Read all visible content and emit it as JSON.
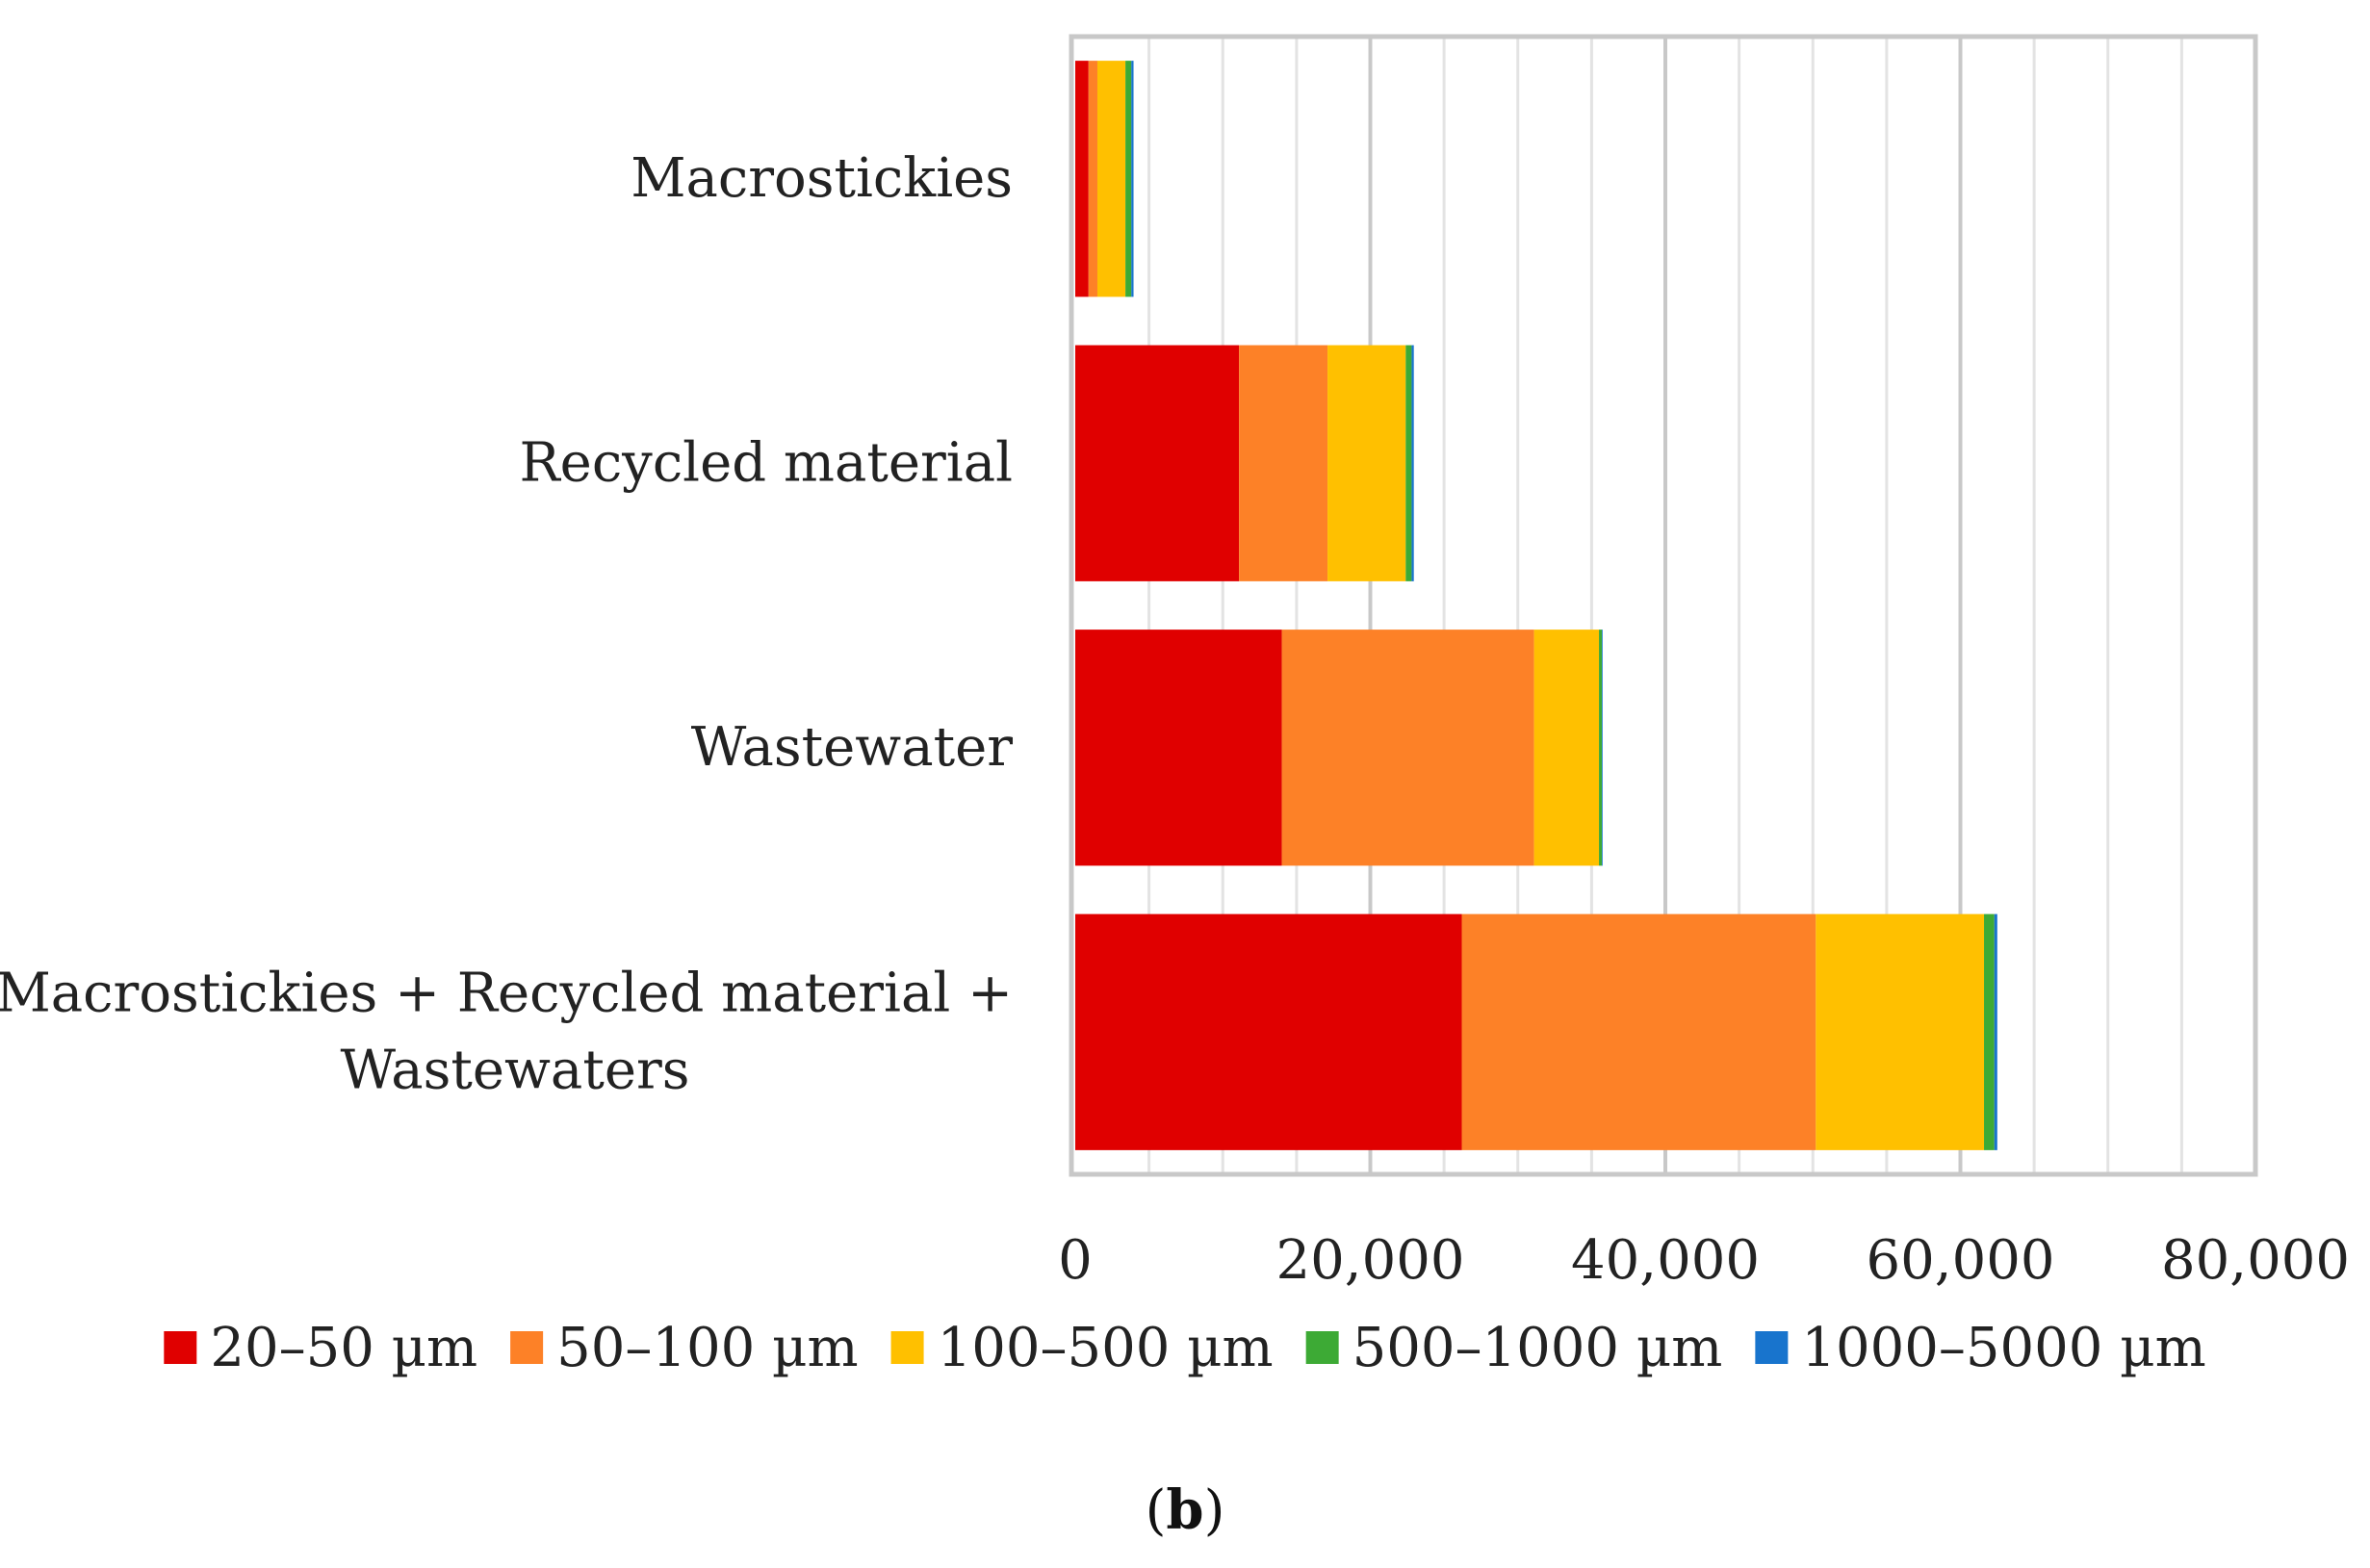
{
  "chart_data": {
    "type": "bar",
    "orientation": "horizontal",
    "stacked": true,
    "title": "",
    "xlabel": "",
    "ylabel": "",
    "xlim": [
      0,
      80000
    ],
    "xticks": [
      0,
      20000,
      40000,
      60000,
      80000
    ],
    "xtick_labels": [
      "0",
      "20,000",
      "40,000",
      "60,000",
      "80,000"
    ],
    "minor_grid_step": 5000,
    "grid": true,
    "legend_position": "bottom",
    "categories": [
      {
        "lines": [
          "Macrostickies"
        ]
      },
      {
        "lines": [
          "Recycled material"
        ]
      },
      {
        "lines": [
          "Wastewater"
        ]
      },
      {
        "lines": [
          "Macrostickies + Recycled material +",
          "Wastewaters"
        ]
      }
    ],
    "series": [
      {
        "name": "20–50 µm",
        "color": "#e00000",
        "values": [
          900,
          11100,
          14000,
          26200
        ]
      },
      {
        "name": "50–100 µm",
        "color": "#fd8127",
        "values": [
          600,
          6000,
          17100,
          24000
        ]
      },
      {
        "name": "100–500 µm",
        "color": "#ffc000",
        "values": [
          1900,
          5300,
          4400,
          11400
        ]
      },
      {
        "name": "500–1000 µm",
        "color": "#3daa35",
        "values": [
          400,
          400,
          200,
          700
        ]
      },
      {
        "name": "1000–5000 µm",
        "color": "#1874cd",
        "values": [
          150,
          150,
          50,
          200
        ]
      }
    ],
    "caption": {
      "open": "(",
      "label": "b",
      "close": ")"
    }
  }
}
